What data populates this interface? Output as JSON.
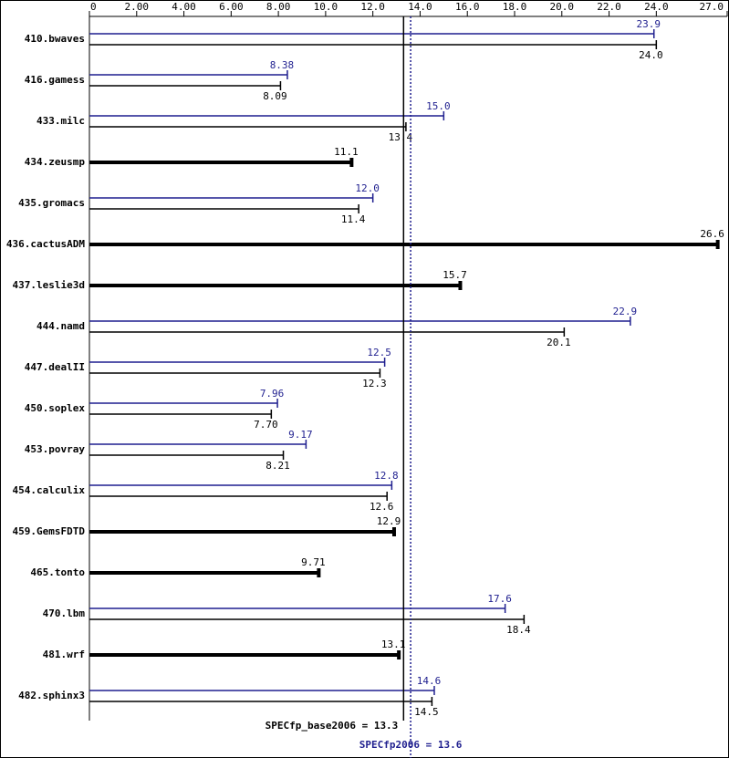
{
  "chart_data": {
    "type": "bar",
    "orientation": "horizontal",
    "categories": [
      "410.bwaves",
      "416.gamess",
      "433.milc",
      "434.zeusmp",
      "435.gromacs",
      "436.cactusADM",
      "437.leslie3d",
      "444.namd",
      "447.dealII",
      "450.soplex",
      "453.povray",
      "454.calculix",
      "459.GemsFDTD",
      "465.tonto",
      "470.lbm",
      "481.wrf",
      "482.sphinx3"
    ],
    "series": [
      {
        "color": "#1f1f8f",
        "values": [
          23.9,
          8.38,
          15.0,
          null,
          12.0,
          null,
          null,
          22.9,
          12.5,
          7.96,
          9.17,
          12.8,
          null,
          null,
          17.6,
          null,
          14.6
        ],
        "value_labels": [
          "23.9",
          "8.38",
          "15.0",
          null,
          "12.0",
          null,
          null,
          "22.9",
          "12.5",
          "7.96",
          "9.17",
          "12.8",
          null,
          null,
          "17.6",
          null,
          "14.6"
        ]
      },
      {
        "color": "#000000",
        "values": [
          24.0,
          8.09,
          13.4,
          11.1,
          11.4,
          26.6,
          15.7,
          20.1,
          12.3,
          7.7,
          8.21,
          12.6,
          12.9,
          9.71,
          18.4,
          13.1,
          14.5
        ],
        "value_labels": [
          "24.0",
          "8.09",
          "13.4",
          "11.1",
          "11.4",
          "26.6",
          "15.7",
          "20.1",
          "12.3",
          "7.70",
          "8.21",
          "12.6",
          "12.9",
          "9.71",
          "18.4",
          "13.1",
          "14.5"
        ]
      }
    ],
    "xlim": [
      0,
      27.0
    ],
    "xticks": [
      0,
      {
        "value": 2,
        "label": "2.00"
      },
      {
        "value": 4,
        "label": "4.00"
      },
      {
        "value": 6,
        "label": "6.00"
      },
      {
        "value": 8,
        "label": "8.00"
      },
      {
        "value": 10,
        "label": "10.0"
      },
      {
        "value": 12,
        "label": "12.0"
      },
      {
        "value": 14,
        "label": "14.0"
      },
      {
        "value": 16,
        "label": "16.0"
      },
      {
        "value": 18,
        "label": "18.0"
      },
      {
        "value": 20,
        "label": "20.0"
      },
      {
        "value": 22,
        "label": "22.0"
      },
      {
        "value": 24,
        "label": "24.0"
      },
      {
        "value": 27,
        "label": "27.0"
      }
    ],
    "reference_lines": [
      {
        "label": "SPECfp_base2006 = 13.3",
        "value": 13.3,
        "color": "#000000",
        "style": "solid"
      },
      {
        "label": "SPECfp2006 = 13.6",
        "value": 13.6,
        "color": "#1f1f8f",
        "style": "dotted"
      }
    ]
  }
}
